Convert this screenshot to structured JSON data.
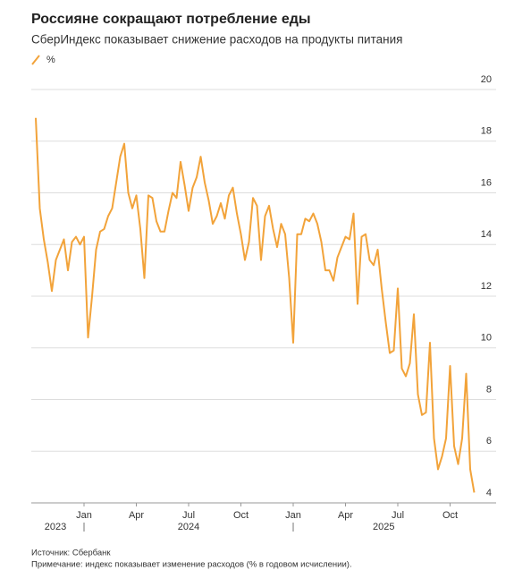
{
  "chart_data": {
    "type": "line",
    "title": "Россияне сокращают потребление еды",
    "subtitle": "СберИндекс показывает снижение расходов на продукты питания",
    "source": "Источник: Сбербанк",
    "note": "Примечание: индекс показывает изменение расходов (% в годовом исчислении).",
    "categories": [
      null,
      null,
      null,
      null,
      null,
      null,
      null,
      null,
      null,
      null,
      null,
      null,
      "Jan",
      null,
      null,
      null,
      null,
      null,
      null,
      null,
      null,
      null,
      null,
      null,
      null,
      "Apr",
      null,
      null,
      null,
      null,
      null,
      null,
      null,
      null,
      null,
      null,
      null,
      null,
      "Jul",
      null,
      null,
      null,
      null,
      null,
      null,
      null,
      null,
      null,
      null,
      null,
      null,
      "Oct",
      null,
      null,
      null,
      null,
      null,
      null,
      null,
      null,
      null,
      null,
      null,
      null,
      "Jan",
      null,
      null,
      null,
      null,
      null,
      null,
      null,
      null,
      null,
      null,
      null,
      null,
      "Apr",
      null,
      null,
      null,
      null,
      null,
      null,
      null,
      null,
      null,
      null,
      null,
      null,
      "Jul",
      null,
      null,
      null,
      null,
      null,
      null,
      null,
      null,
      null,
      null,
      null,
      null,
      "Oct",
      null,
      null,
      null,
      null,
      null,
      null
    ],
    "year_labels": [
      "2023",
      "2024",
      "2025"
    ],
    "series": [
      {
        "name": "%",
        "color": "#f2a33a",
        "values": [
          18.9,
          15.4,
          14.2,
          13.3,
          12.2,
          13.4,
          13.8,
          14.2,
          13.0,
          14.1,
          14.3,
          14.0,
          14.3,
          10.4,
          12.0,
          13.8,
          14.5,
          14.6,
          15.1,
          15.4,
          16.4,
          17.4,
          17.9,
          16.0,
          15.4,
          15.9,
          14.6,
          12.7,
          15.9,
          15.8,
          14.9,
          14.5,
          14.5,
          15.3,
          16.0,
          15.8,
          17.2,
          16.3,
          15.3,
          16.2,
          16.6,
          17.4,
          16.4,
          15.7,
          14.8,
          15.1,
          15.6,
          15.0,
          15.9,
          16.2,
          15.2,
          14.4,
          13.4,
          14.1,
          15.8,
          15.5,
          13.4,
          15.1,
          15.5,
          14.6,
          13.9,
          14.8,
          14.4,
          12.7,
          10.2,
          14.4,
          14.4,
          15.0,
          14.9,
          15.2,
          14.8,
          14.1,
          13.0,
          13.0,
          12.6,
          13.5,
          13.9,
          14.3,
          14.2,
          15.2,
          11.7,
          14.3,
          14.4,
          13.4,
          13.2,
          13.8,
          12.3,
          11.0,
          9.8,
          9.9,
          12.3,
          9.2,
          8.9,
          9.4,
          11.3,
          8.2,
          7.4,
          7.5,
          10.2,
          6.5,
          5.3,
          5.8,
          6.5,
          9.3,
          6.2,
          5.5,
          6.5,
          9.0,
          5.3,
          4.4
        ]
      }
    ],
    "ylim": [
      4,
      20
    ],
    "yticks": [
      4,
      6,
      8,
      10,
      12,
      14,
      16,
      18,
      20
    ],
    "grid": true
  }
}
